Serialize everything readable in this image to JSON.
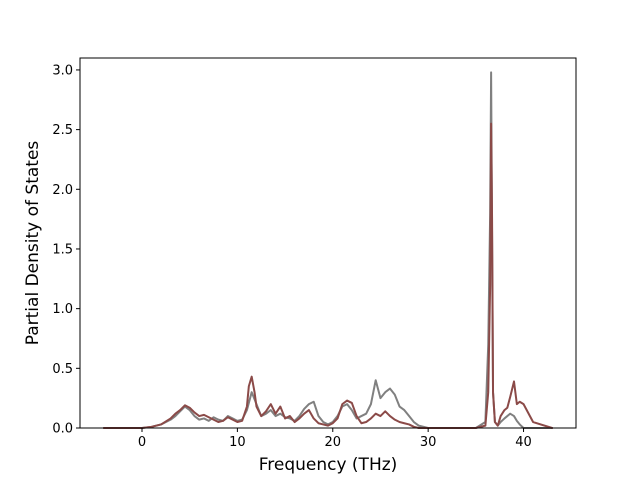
{
  "chart_data": {
    "type": "line",
    "title": "",
    "xlabel": "Frequency (THz)",
    "ylabel": "Partial Density of States",
    "xlim": [
      -6.5,
      45.5
    ],
    "ylim": [
      0.0,
      3.1
    ],
    "xticks": [
      0,
      10,
      20,
      30,
      40
    ],
    "xtick_labels": [
      "0",
      "10",
      "20",
      "30",
      "40"
    ],
    "yticks": [
      0.0,
      0.5,
      1.0,
      1.5,
      2.0,
      2.5,
      3.0
    ],
    "ytick_labels": [
      "0.0",
      "0.5",
      "1.0",
      "1.5",
      "2.0",
      "2.5",
      "3.0"
    ],
    "grid": false,
    "legend": false,
    "series": [
      {
        "color": "#808080",
        "x": [
          -4,
          0,
          1,
          2,
          3,
          3.5,
          4,
          4.5,
          5,
          5.5,
          6,
          6.5,
          7,
          7.5,
          8,
          8.5,
          9,
          9.5,
          10,
          10.5,
          11,
          11.5,
          12,
          12.5,
          13,
          13.5,
          14,
          14.5,
          15,
          15.5,
          16,
          16.5,
          17,
          17.5,
          18,
          18.5,
          19,
          19.5,
          20,
          20.5,
          21,
          21.5,
          22,
          22.5,
          23,
          23.5,
          24,
          24.5,
          25,
          25.5,
          26,
          26.5,
          27,
          27.5,
          28,
          28.5,
          29,
          30,
          32,
          34,
          35,
          36,
          36.3,
          36.5,
          36.6,
          36.7,
          36.8,
          37,
          37.3,
          37.6,
          38,
          38.3,
          38.6,
          39,
          39.3,
          39.6,
          40,
          41,
          43
        ],
        "y": [
          0,
          0,
          0.01,
          0.03,
          0.07,
          0.1,
          0.14,
          0.18,
          0.15,
          0.1,
          0.07,
          0.08,
          0.06,
          0.09,
          0.07,
          0.06,
          0.1,
          0.08,
          0.06,
          0.07,
          0.15,
          0.3,
          0.2,
          0.1,
          0.12,
          0.15,
          0.1,
          0.12,
          0.09,
          0.08,
          0.06,
          0.1,
          0.16,
          0.2,
          0.22,
          0.1,
          0.05,
          0.03,
          0.05,
          0.1,
          0.18,
          0.2,
          0.15,
          0.08,
          0.1,
          0.12,
          0.2,
          0.4,
          0.25,
          0.3,
          0.33,
          0.28,
          0.18,
          0.15,
          0.1,
          0.05,
          0.02,
          0,
          0,
          0,
          0,
          0.05,
          0.7,
          1.8,
          2.98,
          1.6,
          0.3,
          0.05,
          0.02,
          0.05,
          0.08,
          0.1,
          0.12,
          0.1,
          0.06,
          0.03,
          0,
          0,
          0
        ]
      },
      {
        "color": "#8b4a48",
        "x": [
          -4,
          0,
          1,
          2,
          3,
          3.5,
          4,
          4.5,
          5,
          5.5,
          6,
          6.5,
          7,
          7.5,
          8,
          8.5,
          9,
          9.5,
          10,
          10.5,
          11,
          11.2,
          11.5,
          11.8,
          12,
          12.5,
          13,
          13.5,
          14,
          14.5,
          15,
          15.5,
          16,
          16.5,
          17,
          17.5,
          18,
          18.5,
          19,
          19.5,
          20,
          20.5,
          21,
          21.5,
          22,
          22.5,
          23,
          23.5,
          24,
          24.5,
          25,
          25.5,
          26,
          26.5,
          27,
          27.5,
          28,
          28.5,
          29,
          30,
          32,
          34,
          35,
          36,
          36.3,
          36.5,
          36.6,
          36.7,
          36.8,
          37,
          37.3,
          37.6,
          38,
          38.3,
          38.6,
          39,
          39.3,
          39.6,
          40,
          41,
          43
        ],
        "y": [
          0,
          0,
          0.01,
          0.03,
          0.08,
          0.12,
          0.15,
          0.19,
          0.17,
          0.13,
          0.1,
          0.11,
          0.09,
          0.07,
          0.05,
          0.06,
          0.09,
          0.07,
          0.05,
          0.06,
          0.18,
          0.35,
          0.43,
          0.3,
          0.18,
          0.1,
          0.14,
          0.2,
          0.12,
          0.18,
          0.08,
          0.1,
          0.05,
          0.08,
          0.12,
          0.15,
          0.08,
          0.04,
          0.03,
          0.02,
          0.04,
          0.08,
          0.2,
          0.23,
          0.21,
          0.1,
          0.04,
          0.05,
          0.08,
          0.12,
          0.1,
          0.14,
          0.1,
          0.07,
          0.05,
          0.04,
          0.03,
          0.01,
          0,
          0,
          0,
          0,
          0,
          0.02,
          0.3,
          1.2,
          2.55,
          1.75,
          0.3,
          0.05,
          0.02,
          0.1,
          0.15,
          0.17,
          0.26,
          0.39,
          0.2,
          0.22,
          0.2,
          0.05,
          0
        ]
      }
    ]
  }
}
